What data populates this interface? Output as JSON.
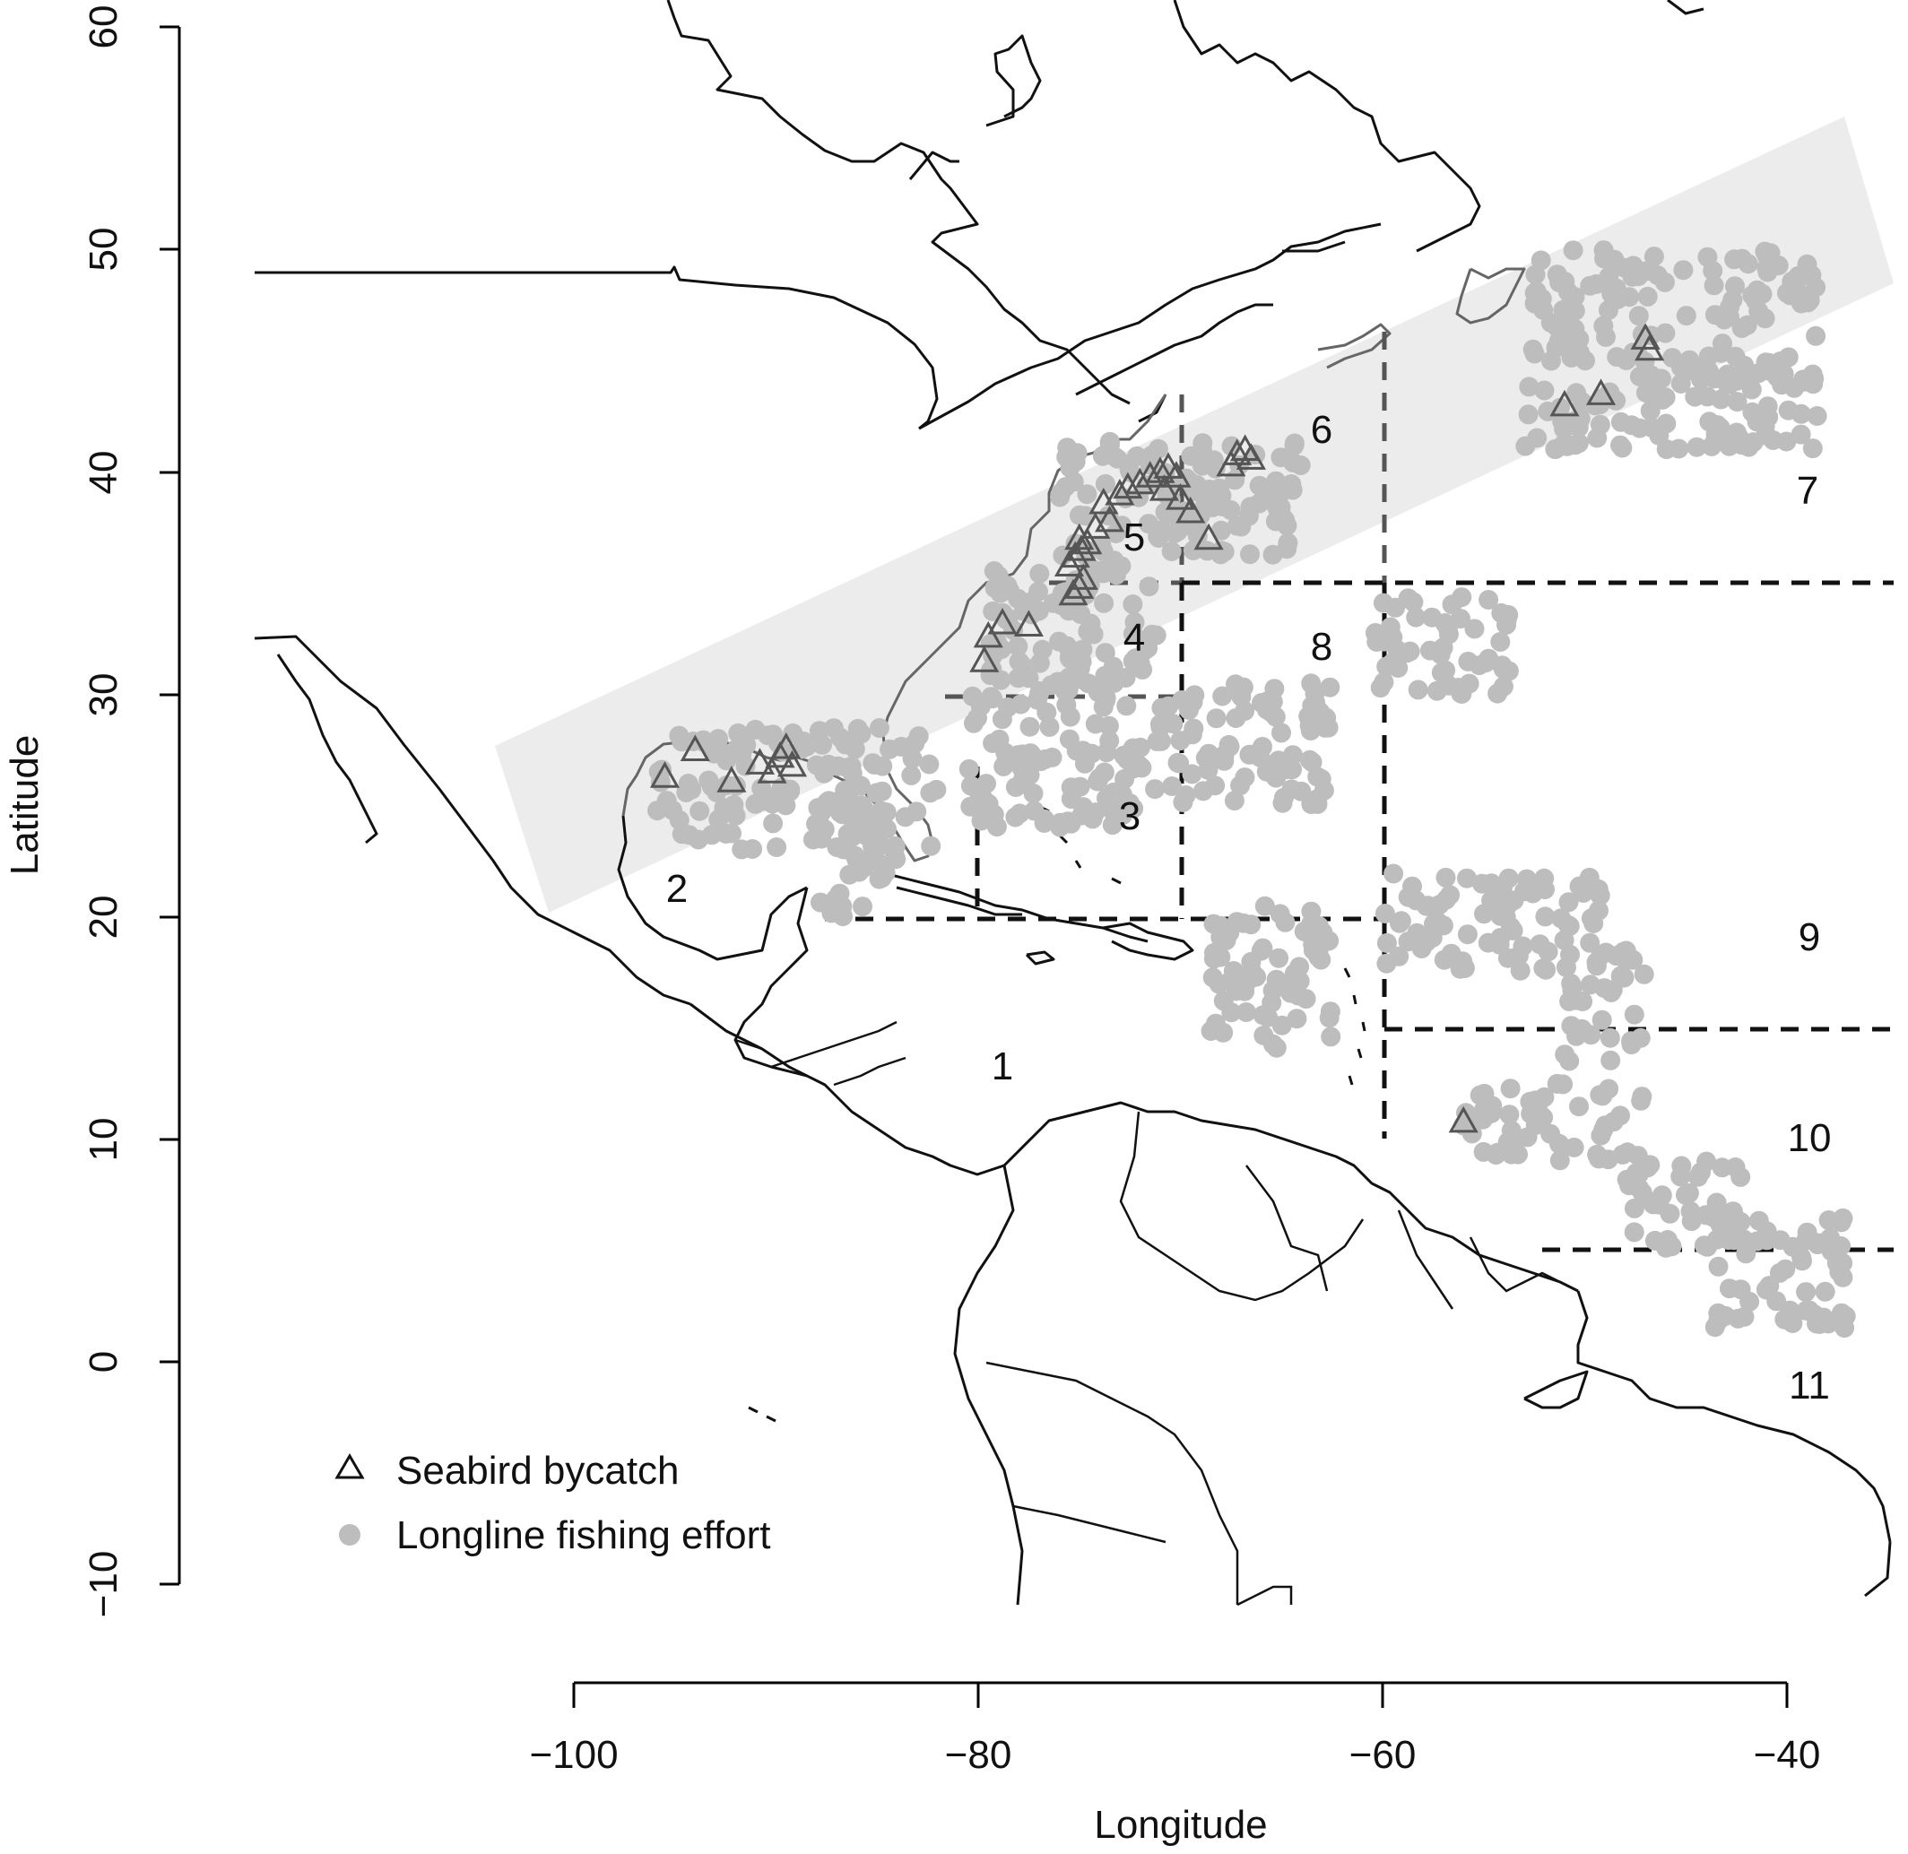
{
  "axes": {
    "x_title": "Longitude",
    "y_title": "Latitude",
    "x_ticks": [
      "−100",
      "−80",
      "−60",
      "−40"
    ],
    "y_ticks": [
      "60",
      "50",
      "40",
      "30",
      "20",
      "10",
      "0",
      "−10"
    ]
  },
  "regions": [
    "1",
    "2",
    "3",
    "4",
    "5",
    "6",
    "7",
    "8",
    "9",
    "10",
    "11"
  ],
  "legend": {
    "bycatch_label": "Seabird bycatch",
    "effort_label": "Longline fishing effort"
  },
  "colors": {
    "effort": "#bdbdbd",
    "band": "#ececec",
    "bycatch_stroke": "#555555"
  },
  "chart_data": {
    "type": "scatter",
    "xlabel": "Longitude",
    "ylabel": "Latitude",
    "xlim": [
      -100,
      -40
    ],
    "ylim": [
      -10,
      60
    ],
    "x_ticks": [
      -100,
      -80,
      -60,
      -40
    ],
    "y_ticks": [
      -10,
      0,
      10,
      20,
      30,
      40,
      50,
      60
    ],
    "grid": false,
    "legend_position": "bottom-left",
    "series": [
      {
        "name": "Seabird bycatch",
        "marker": "triangle",
        "points": [
          [
            -95.5,
            26.3
          ],
          [
            -94.0,
            27.5
          ],
          [
            -92.2,
            26.1
          ],
          [
            -90.8,
            26.9
          ],
          [
            -90.2,
            26.5
          ],
          [
            -89.8,
            27.2
          ],
          [
            -89.5,
            27.6
          ],
          [
            -89.2,
            26.8
          ],
          [
            -79.7,
            31.5
          ],
          [
            -79.5,
            32.6
          ],
          [
            -78.8,
            33.2
          ],
          [
            -77.5,
            33.1
          ],
          [
            -75.3,
            34.5
          ],
          [
            -75.0,
            34.8
          ],
          [
            -74.8,
            35.2
          ],
          [
            -75.5,
            35.8
          ],
          [
            -75.2,
            36.2
          ],
          [
            -74.9,
            36.5
          ],
          [
            -74.6,
            36.8
          ],
          [
            -75.0,
            37.0
          ],
          [
            -74.2,
            37.5
          ],
          [
            -73.5,
            37.8
          ],
          [
            -73.8,
            38.6
          ],
          [
            -73.0,
            39.0
          ],
          [
            -72.6,
            39.3
          ],
          [
            -72.0,
            39.5
          ],
          [
            -71.5,
            39.8
          ],
          [
            -71.0,
            40.0
          ],
          [
            -70.6,
            40.2
          ],
          [
            -70.2,
            39.8
          ],
          [
            -70.8,
            39.2
          ],
          [
            -70.0,
            38.8
          ],
          [
            -69.5,
            38.2
          ],
          [
            -68.6,
            37.0
          ],
          [
            -67.5,
            40.3
          ],
          [
            -67.2,
            40.8
          ],
          [
            -66.8,
            41.0
          ],
          [
            -66.5,
            40.6
          ],
          [
            -51.0,
            43.0
          ],
          [
            -49.2,
            43.5
          ],
          [
            -47.0,
            46.0
          ],
          [
            -46.8,
            45.5
          ],
          [
            -56.0,
            10.8
          ]
        ]
      },
      {
        "name": "Longline fishing effort",
        "marker": "circle",
        "clusters": [
          {
            "x": [
              -96,
              -82
            ],
            "y": [
              23,
              28.5
            ]
          },
          {
            "x": [
              -88,
              -84
            ],
            "y": [
              20,
              24
            ]
          },
          {
            "x": [
              -80.5,
              -72
            ],
            "y": [
              24,
              31
            ]
          },
          {
            "x": [
              -72,
              -62.5
            ],
            "y": [
              25,
              30.5
            ]
          },
          {
            "x": [
              -79.5,
              -71
            ],
            "y": [
              30.5,
              36
            ]
          },
          {
            "x": [
              -76,
              -64
            ],
            "y": [
              36,
              41.5
            ]
          },
          {
            "x": [
              -60.5,
              -53.5
            ],
            "y": [
              30,
              34.5
            ]
          },
          {
            "x": [
              -53,
              -38.5
            ],
            "y": [
              41,
              50
            ]
          },
          {
            "x": [
              -60,
              -49
            ],
            "y": [
              17.5,
              22
            ]
          },
          {
            "x": [
              -68.5,
              -62.5
            ],
            "y": [
              14,
              20.5
            ]
          },
          {
            "x": [
              -56,
              -47
            ],
            "y": [
              9,
              12.5
            ]
          },
          {
            "x": [
              -51,
              -47
            ],
            "y": [
              13.5,
              18.5
            ]
          },
          {
            "x": [
              -48,
              -42
            ],
            "y": [
              5,
              9
            ]
          },
          {
            "x": [
              -44,
              -37
            ],
            "y": [
              1.5,
              6.5
            ]
          }
        ]
      }
    ]
  }
}
